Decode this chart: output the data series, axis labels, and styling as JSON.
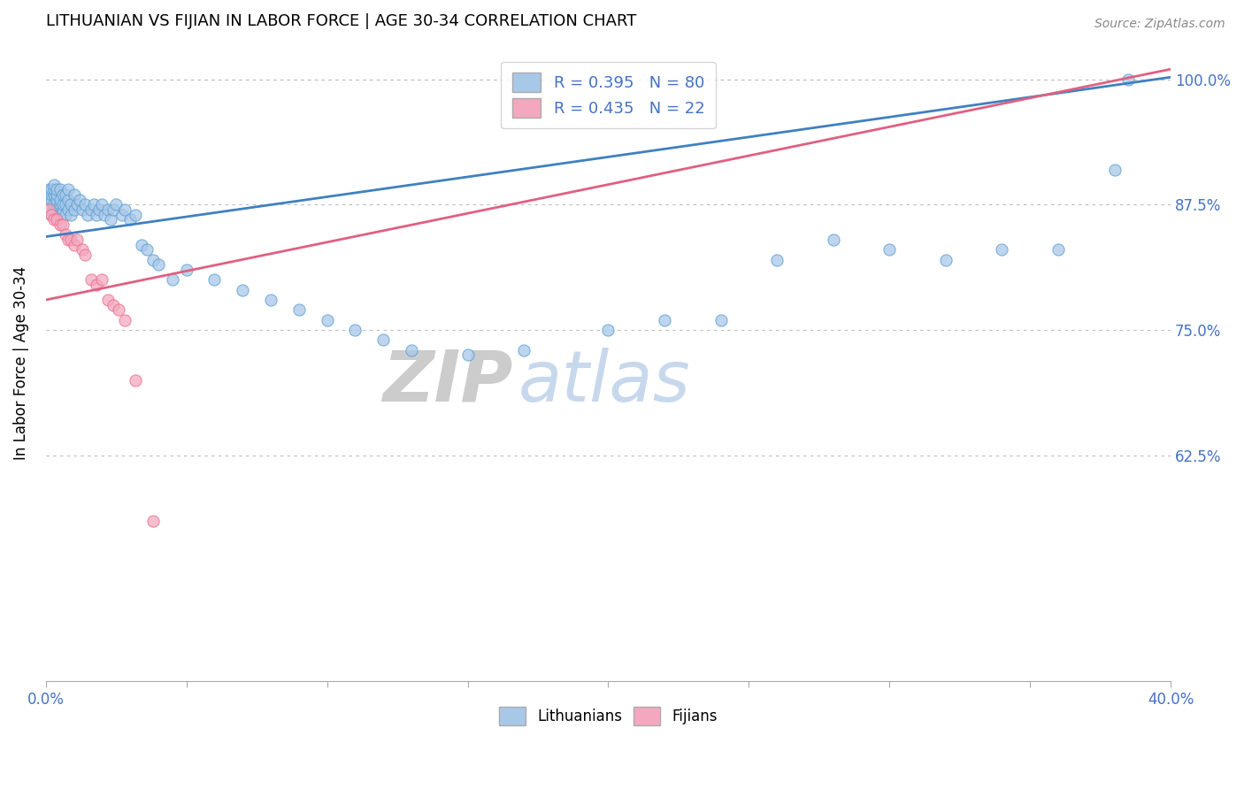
{
  "title": "LITHUANIAN VS FIJIAN IN LABOR FORCE | AGE 30-34 CORRELATION CHART",
  "source": "Source: ZipAtlas.com",
  "ylabel": "In Labor Force | Age 30-34",
  "xlim": [
    0.0,
    0.4
  ],
  "ylim": [
    0.4,
    1.035
  ],
  "xticks": [
    0.0,
    0.05,
    0.1,
    0.15,
    0.2,
    0.25,
    0.3,
    0.35,
    0.4
  ],
  "xticklabels": [
    "0.0%",
    "",
    "",
    "",
    "",
    "",
    "",
    "",
    "40.0%"
  ],
  "yticks": [
    0.625,
    0.75,
    0.875,
    1.0
  ],
  "yticklabels": [
    "62.5%",
    "75.0%",
    "87.5%",
    "100.0%"
  ],
  "blue_color": "#A8C8E8",
  "pink_color": "#F4A8C0",
  "blue_edge_color": "#5A9FD4",
  "pink_edge_color": "#E8708A",
  "blue_line_color": "#4080C0",
  "pink_line_color": "#E06080",
  "legend_text_blue": "R = 0.395   N = 80",
  "legend_text_pink": "R = 0.435   N = 22",
  "watermark_zip": "ZIP",
  "watermark_atlas": "atlas",
  "blue_x": [
    0.001,
    0.001,
    0.001,
    0.002,
    0.002,
    0.002,
    0.002,
    0.003,
    0.003,
    0.003,
    0.003,
    0.003,
    0.004,
    0.004,
    0.004,
    0.004,
    0.004,
    0.005,
    0.005,
    0.005,
    0.005,
    0.006,
    0.006,
    0.006,
    0.007,
    0.007,
    0.007,
    0.008,
    0.008,
    0.008,
    0.009,
    0.009,
    0.01,
    0.01,
    0.011,
    0.012,
    0.013,
    0.014,
    0.015,
    0.016,
    0.017,
    0.018,
    0.019,
    0.02,
    0.021,
    0.022,
    0.023,
    0.024,
    0.025,
    0.027,
    0.028,
    0.03,
    0.032,
    0.034,
    0.036,
    0.038,
    0.04,
    0.045,
    0.05,
    0.06,
    0.07,
    0.08,
    0.09,
    0.1,
    0.11,
    0.12,
    0.13,
    0.15,
    0.17,
    0.2,
    0.22,
    0.24,
    0.26,
    0.28,
    0.3,
    0.32,
    0.34,
    0.36,
    0.38,
    0.385
  ],
  "blue_y": [
    0.88,
    0.875,
    0.89,
    0.865,
    0.88,
    0.885,
    0.89,
    0.87,
    0.875,
    0.885,
    0.89,
    0.895,
    0.87,
    0.875,
    0.88,
    0.885,
    0.89,
    0.865,
    0.875,
    0.88,
    0.89,
    0.87,
    0.875,
    0.885,
    0.865,
    0.875,
    0.885,
    0.87,
    0.88,
    0.89,
    0.865,
    0.875,
    0.87,
    0.885,
    0.875,
    0.88,
    0.87,
    0.875,
    0.865,
    0.87,
    0.875,
    0.865,
    0.87,
    0.875,
    0.865,
    0.87,
    0.86,
    0.87,
    0.875,
    0.865,
    0.87,
    0.86,
    0.865,
    0.835,
    0.83,
    0.82,
    0.815,
    0.8,
    0.81,
    0.8,
    0.79,
    0.78,
    0.77,
    0.76,
    0.75,
    0.74,
    0.73,
    0.725,
    0.73,
    0.75,
    0.76,
    0.76,
    0.82,
    0.84,
    0.83,
    0.82,
    0.83,
    0.83,
    0.91,
    1.0
  ],
  "pink_x": [
    0.001,
    0.002,
    0.003,
    0.004,
    0.005,
    0.006,
    0.007,
    0.008,
    0.009,
    0.01,
    0.011,
    0.013,
    0.014,
    0.016,
    0.018,
    0.02,
    0.022,
    0.024,
    0.026,
    0.028,
    0.032,
    0.038
  ],
  "pink_y": [
    0.87,
    0.865,
    0.86,
    0.86,
    0.855,
    0.855,
    0.845,
    0.84,
    0.84,
    0.835,
    0.84,
    0.83,
    0.825,
    0.8,
    0.795,
    0.8,
    0.78,
    0.775,
    0.77,
    0.76,
    0.7,
    0.56
  ],
  "blue_trendline_x": [
    0.0,
    0.4
  ],
  "blue_trendline_y": [
    0.843,
    1.002
  ],
  "pink_trendline_x": [
    0.0,
    0.4
  ],
  "pink_trendline_y": [
    0.78,
    1.01
  ]
}
